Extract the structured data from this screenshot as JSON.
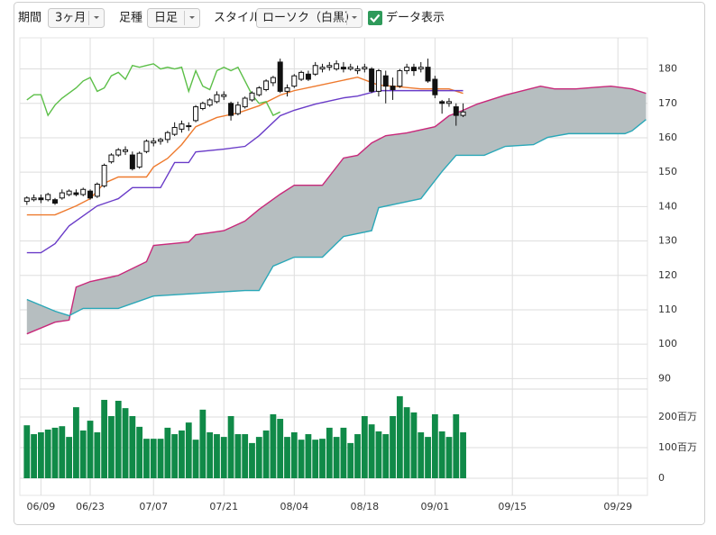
{
  "toolbar": {
    "period_label": "期間",
    "period_value": "3ヶ月",
    "kind_label": "足種",
    "kind_value": "日足",
    "style_label": "スタイル",
    "style_value": "ローソク（白黒）",
    "data_label": "データ表示",
    "data_checked": true
  },
  "chart_data": {
    "type": "candlestick",
    "xlim": [
      -1,
      88.2
    ],
    "xticks": [
      {
        "value": 2,
        "label": "06/09"
      },
      {
        "value": 9,
        "label": "06/23"
      },
      {
        "value": 18,
        "label": "07/07"
      },
      {
        "value": 28,
        "label": "07/21"
      },
      {
        "value": 38,
        "label": "08/04"
      },
      {
        "value": 48,
        "label": "08/18"
      },
      {
        "value": 58,
        "label": "09/01"
      },
      {
        "value": 69,
        "label": "09/15"
      },
      {
        "value": 84,
        "label": "09/29"
      }
    ],
    "ylim": [
      88,
      188
    ],
    "yticks": [
      90,
      100,
      110,
      120,
      130,
      140,
      150,
      160,
      170,
      180
    ],
    "grid": true,
    "up_color": "#ffffff",
    "down_color": "#111111",
    "x": [
      0,
      1,
      2,
      3,
      4,
      5,
      6,
      7,
      8,
      9,
      10,
      11,
      12,
      13,
      14,
      15,
      16,
      17,
      18,
      19,
      20,
      21,
      22,
      23,
      24,
      25,
      26,
      27,
      28,
      29,
      30,
      31,
      32,
      33,
      34,
      35,
      36,
      37,
      38,
      39,
      40,
      41,
      42,
      43,
      44,
      45,
      46,
      47,
      48,
      49,
      50,
      51,
      52,
      53,
      54,
      55,
      56,
      57,
      58,
      59,
      60,
      61,
      62
    ],
    "open": [
      141.5,
      142,
      142.5,
      142,
      142,
      142.5,
      143.5,
      144,
      143.5,
      144.5,
      143,
      146,
      153,
      155,
      156,
      155,
      151.5,
      156,
      158.5,
      159,
      159.5,
      161,
      162.5,
      163.5,
      165,
      168.5,
      169.5,
      170.5,
      172,
      170,
      167,
      169,
      171,
      172.5,
      174,
      176,
      182,
      173.5,
      175,
      177,
      178.5,
      178.5,
      180,
      180.5,
      180,
      180.5,
      180,
      179.5,
      180,
      180,
      173.5,
      178,
      175,
      175,
      179.5,
      180.5,
      180,
      180.5,
      177,
      170.5,
      170,
      169,
      166.5
    ],
    "high": [
      143,
      143.5,
      143.5,
      144,
      142.5,
      145,
      145,
      145,
      145.5,
      145,
      147,
      152.5,
      155.5,
      157,
      157.5,
      156,
      156,
      159.5,
      160,
      160,
      162,
      164.5,
      165,
      164.5,
      169.5,
      170.5,
      171.5,
      173.5,
      173.5,
      170.5,
      170.5,
      172,
      173.5,
      175,
      177,
      178,
      183,
      175.5,
      178.5,
      179.5,
      179.5,
      182,
      181.5,
      182,
      182.5,
      182,
      181.5,
      181,
      181.5,
      180.5,
      180,
      179.5,
      177.5,
      180,
      181.5,
      181.5,
      182,
      183,
      178,
      171,
      171.5,
      170,
      170
    ],
    "low": [
      140.5,
      141.5,
      141,
      141.5,
      140.5,
      142,
      143,
      143,
      143,
      142,
      142.5,
      145.5,
      152.5,
      154.5,
      155,
      150.5,
      151,
      155.5,
      157.5,
      158,
      158.5,
      160.5,
      161.5,
      162,
      164.5,
      168,
      169,
      170,
      171,
      165,
      166.5,
      168.5,
      170.5,
      172,
      173.5,
      175,
      173,
      172,
      174.5,
      176.5,
      176.5,
      178,
      179,
      179.5,
      179.5,
      179,
      179.5,
      178.5,
      179,
      173,
      172,
      170,
      171,
      174.5,
      178.5,
      178,
      179,
      176,
      171.5,
      167,
      169,
      163.5,
      166
    ],
    "close": [
      142.5,
      142.5,
      142,
      143.5,
      141,
      144,
      144.5,
      143.5,
      145,
      142.5,
      146.5,
      152,
      155,
      156.5,
      156.5,
      151,
      155.5,
      159,
      159,
      159.5,
      161.5,
      163,
      164,
      163.5,
      169,
      170,
      171,
      172.5,
      172.5,
      166.5,
      169.5,
      171.5,
      173,
      174.5,
      176.5,
      177.5,
      173.5,
      174.5,
      178,
      179,
      177,
      181,
      180.5,
      181,
      181.5,
      180,
      180.5,
      180,
      180.5,
      173.5,
      179.5,
      175,
      174,
      179.5,
      180.5,
      179.5,
      180.5,
      176.5,
      172.5,
      170,
      170.5,
      166.5,
      167.5
    ],
    "lines": [
      {
        "color": "#ee7a2e",
        "x": [
          0,
          4,
          7,
          9,
          11,
          13,
          17,
          18,
          20,
          22,
          24,
          27,
          30,
          33,
          36,
          38,
          41,
          47,
          50,
          52,
          56,
          60,
          62
        ],
        "values": [
          137.6,
          137.6,
          140.2,
          142.3,
          146.8,
          148.6,
          148.6,
          151.5,
          154,
          158,
          163.2,
          165.9,
          167.2,
          169.3,
          172.4,
          173.7,
          175,
          177.6,
          175.3,
          175,
          174.2,
          174.2,
          172.9
        ]
      },
      {
        "color": "#6a3cc8",
        "x": [
          0,
          2,
          4,
          6,
          10,
          13,
          15,
          19,
          21,
          23,
          24,
          28,
          31,
          33,
          36,
          38,
          41,
          45,
          47,
          50,
          62
        ],
        "values": [
          126.6,
          126.6,
          129.2,
          134.4,
          140.2,
          142.3,
          145.5,
          145.5,
          152.8,
          152.8,
          155.9,
          156.7,
          157.5,
          160.6,
          166.4,
          168,
          169.8,
          171.6,
          172.1,
          173.7,
          173.7
        ]
      },
      {
        "color": "#5cbf48",
        "x": [
          0,
          1,
          2,
          3,
          4,
          5,
          6,
          7,
          8,
          9,
          10,
          11,
          12,
          13,
          14,
          15,
          16,
          17,
          18,
          19,
          20,
          21,
          22,
          23,
          24,
          25,
          26,
          27,
          28,
          29,
          30,
          31,
          32,
          33,
          34,
          35,
          36
        ],
        "values": [
          171,
          172.5,
          172.5,
          166.5,
          169.5,
          171.5,
          173,
          174.5,
          176.5,
          177.5,
          173.5,
          174.5,
          178,
          179,
          177,
          181,
          180.5,
          181,
          181.5,
          180,
          180.5,
          180,
          180.5,
          173.5,
          179.5,
          175,
          174,
          179.5,
          180.5,
          179.5,
          180.5,
          176.5,
          172.5,
          170,
          170.5,
          166.5,
          167.5
        ]
      },
      {
        "color": "#c8287a",
        "x": [
          0,
          4,
          6,
          7,
          9,
          13,
          17,
          18,
          23,
          24,
          28,
          31,
          33,
          36,
          38,
          42,
          45,
          47,
          49,
          51,
          54,
          58,
          60,
          62,
          64,
          68,
          73,
          75,
          78,
          81,
          83,
          86,
          88
        ],
        "values": [
          103,
          106.4,
          107,
          116.6,
          118.2,
          120,
          124,
          128.7,
          129.7,
          131.8,
          133,
          135.8,
          139.2,
          143.6,
          146.2,
          146.2,
          154.1,
          154.9,
          158.5,
          160.6,
          161.4,
          163.2,
          166.4,
          168,
          169.8,
          172.4,
          175,
          174.2,
          174.2,
          174.7,
          175,
          174.2,
          172.9
        ]
      },
      {
        "color": "#2aa8b8",
        "x": [
          0,
          4,
          6,
          8,
          13,
          18,
          31,
          33,
          35,
          38,
          42,
          45,
          49,
          50,
          53,
          56,
          59,
          61,
          65,
          68,
          72,
          74,
          77,
          85,
          86,
          88
        ],
        "values": [
          113,
          109.6,
          108.3,
          110.4,
          110.4,
          114,
          115.6,
          115.6,
          122.7,
          125.3,
          125.3,
          131.3,
          133,
          139.7,
          141,
          142.3,
          150.2,
          154.9,
          154.9,
          157.5,
          158,
          160.1,
          161.2,
          161.2,
          162,
          165.3
        ]
      }
    ],
    "cloud_color": "#b6bec0",
    "volume": {
      "color": "#108a48",
      "ylim": [
        0,
        300
      ],
      "yticks": [
        {
          "value": 200,
          "label": "200百万"
        },
        {
          "value": 100,
          "label": "100百万"
        },
        0
      ],
      "values": [
        173,
        144,
        150,
        159,
        165,
        170,
        135,
        232,
        156,
        188,
        150,
        256,
        203,
        253,
        229,
        203,
        168,
        129,
        129,
        129,
        165,
        144,
        156,
        182,
        126,
        224,
        150,
        144,
        135,
        203,
        144,
        144,
        115,
        135,
        156,
        209,
        194,
        135,
        150,
        126,
        144,
        126,
        129,
        165,
        135,
        165,
        115,
        144,
        203,
        176,
        153,
        144,
        203,
        268,
        232,
        215,
        150,
        135,
        209,
        153,
        135,
        209,
        150
      ]
    }
  }
}
